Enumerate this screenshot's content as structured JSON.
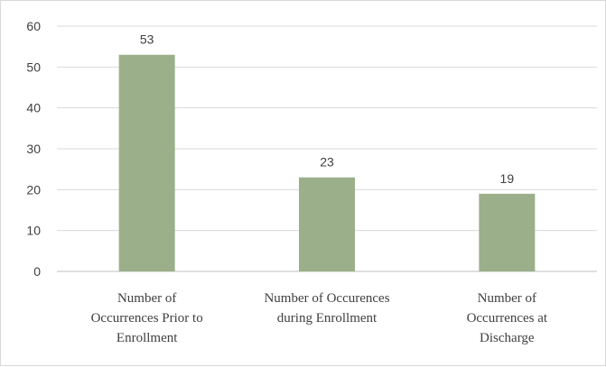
{
  "chart_data": {
    "type": "bar",
    "categories": [
      [
        "Number of",
        "Occurrences Prior to",
        "Enrollment"
      ],
      [
        "Number of Occurences",
        "during Enrollment"
      ],
      [
        "Number of",
        "Occurrences at",
        "Discharge"
      ]
    ],
    "values": [
      53,
      23,
      19
    ],
    "data_labels": [
      "53",
      "23",
      "19"
    ],
    "yticks": [
      0,
      10,
      20,
      30,
      40,
      50,
      60
    ],
    "ylim": [
      0,
      60
    ],
    "grid": true,
    "legend": "none",
    "title": "",
    "xlabel": "",
    "ylabel": "",
    "colors": {
      "bar": "#9bb08a",
      "grid": "#d9d9d9",
      "text": "#404040"
    }
  }
}
